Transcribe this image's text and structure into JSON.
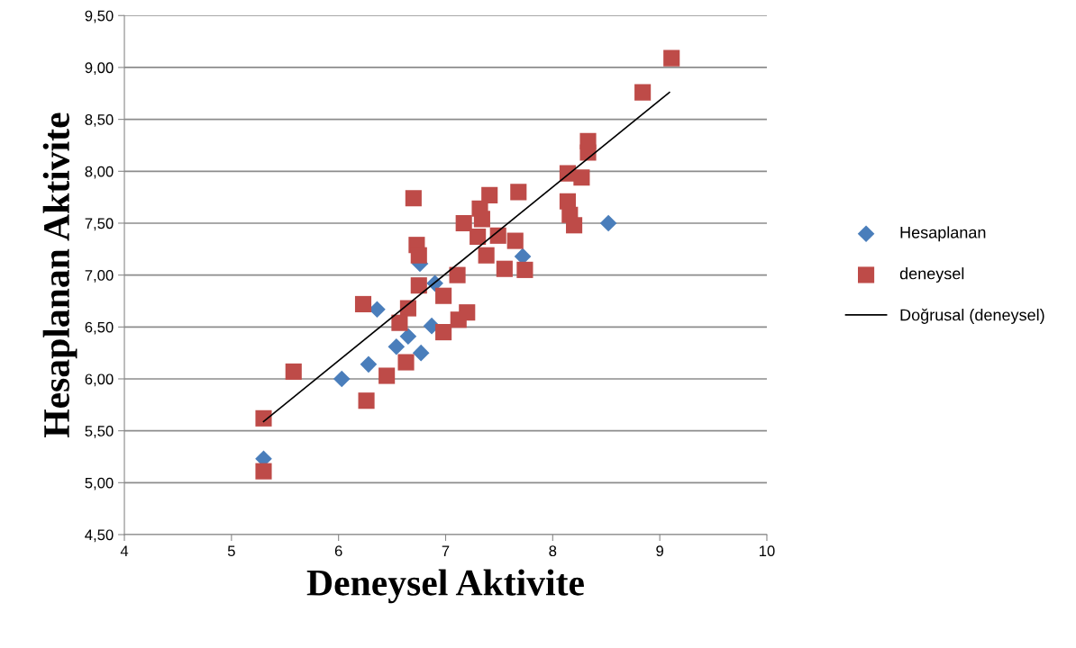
{
  "chart_data": {
    "type": "scatter",
    "xlabel": "Deneysel Aktivite",
    "ylabel": "Hesaplanan Aktivite",
    "xlim": [
      4,
      10
    ],
    "xticks": [
      4,
      5,
      6,
      7,
      8,
      9,
      10
    ],
    "ylim": [
      4.5,
      9.5
    ],
    "yticks": [
      {
        "value": 4.5,
        "label": "4,50"
      },
      {
        "value": 5.0,
        "label": "5,00"
      },
      {
        "value": 5.5,
        "label": "5,50"
      },
      {
        "value": 6.0,
        "label": "6,00"
      },
      {
        "value": 6.5,
        "label": "6,50"
      },
      {
        "value": 7.0,
        "label": "7,00"
      },
      {
        "value": 7.5,
        "label": "7,50"
      },
      {
        "value": 8.0,
        "label": "8,00"
      },
      {
        "value": 8.5,
        "label": "8,50"
      },
      {
        "value": 9.0,
        "label": "9,00"
      },
      {
        "value": 9.5,
        "label": "9,50"
      }
    ],
    "grid": "y",
    "legend": "right",
    "series": [
      {
        "name": "Hesaplanan",
        "color": "#4a7ebb",
        "marker": "diamond",
        "x": [
          5.3,
          6.03,
          6.28,
          6.36,
          6.54,
          6.65,
          6.77,
          6.87,
          6.9,
          6.76,
          8.52,
          7.72
        ],
        "values": [
          5.23,
          6.0,
          6.14,
          6.67,
          6.31,
          6.41,
          6.25,
          6.51,
          6.92,
          7.11,
          7.5,
          7.18
        ]
      },
      {
        "name": "deneysel",
        "color": "#be4b48",
        "marker": "square",
        "x": [
          6.7,
          7.17,
          6.73,
          6.75,
          7.11,
          6.75,
          6.98,
          6.23,
          6.65,
          6.57,
          6.98,
          7.12,
          7.2,
          6.63,
          6.45,
          5.58,
          6.26,
          5.3,
          5.3,
          8.33,
          8.14,
          8.27,
          7.68,
          7.41,
          7.32,
          8.14,
          8.16,
          8.2,
          7.34,
          7.3,
          7.49,
          7.65,
          7.38,
          7.55,
          7.74,
          9.11,
          8.84,
          8.33
        ],
        "values": [
          7.74,
          7.5,
          7.29,
          7.19,
          7.0,
          6.9,
          6.8,
          6.72,
          6.68,
          6.54,
          6.45,
          6.57,
          6.64,
          6.16,
          6.03,
          6.07,
          5.79,
          5.62,
          5.11,
          8.18,
          7.98,
          7.94,
          7.8,
          7.77,
          7.64,
          7.71,
          7.58,
          7.48,
          7.54,
          7.37,
          7.38,
          7.33,
          7.19,
          7.06,
          7.05,
          9.09,
          8.76,
          8.29
        ]
      },
      {
        "name": "Doğrusal (deneysel)",
        "type": "line",
        "color": "#000000",
        "marker": "none",
        "line_style": "solid",
        "x": [
          5.3,
          9.09
        ],
        "values": [
          5.59,
          8.76
        ]
      }
    ]
  }
}
